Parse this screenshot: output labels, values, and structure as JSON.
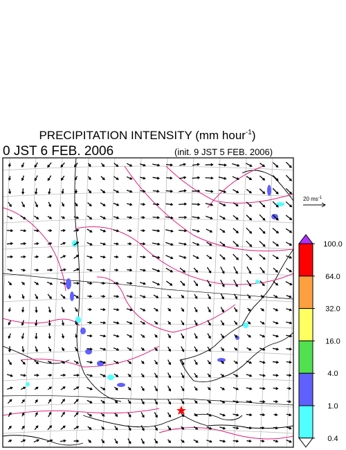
{
  "header": {
    "title": "PRECIPITATION INTENSITY (mm hour",
    "title_superscript": "-1",
    "title_close": ")",
    "valid_time": "0 JST 6 FEB. 2006",
    "init_time": "(init. 9 JST 5 FEB. 2006)"
  },
  "vector_scale": {
    "label": "20 ms",
    "superscript": "-1"
  },
  "colorbar": {
    "levels": [
      {
        "value": 100,
        "label": "100.0"
      },
      {
        "value": 64,
        "label": "64.0"
      },
      {
        "value": 32,
        "label": "32.0"
      },
      {
        "value": 16,
        "label": "16.0"
      },
      {
        "value": 4,
        "label": "4.0"
      },
      {
        "value": 1,
        "label": "1.0"
      },
      {
        "value": 0.4,
        "label": "0.4"
      }
    ],
    "colors": [
      "#ff0000",
      "#ffa040",
      "#ffff60",
      "#50e050",
      "#6060ff",
      "#50ffff"
    ],
    "over_color": "#b030ff",
    "under_color": "#ffffff"
  }
}
